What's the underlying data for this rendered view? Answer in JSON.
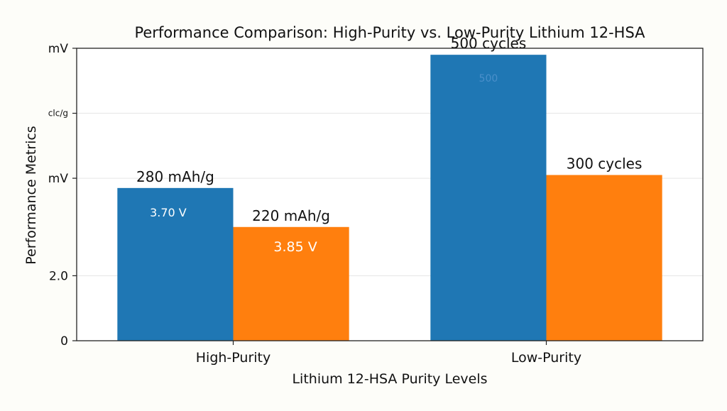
{
  "chart_data": {
    "type": "bar",
    "title": "Performance Comparison: High-Purity vs. Low-Purity Lithium 12-HSA",
    "xlabel": "Lithium 12-HSA Purity Levels",
    "ylabel": "Performance Metrics",
    "categories": [
      "High-Purity",
      "Low-Purity"
    ],
    "ylim": [
      0,
      9
    ],
    "y_ticks": [
      {
        "value": 0,
        "label": "0"
      },
      {
        "value": 2,
        "label": "2.0"
      },
      {
        "value": 5,
        "label": "mV"
      },
      {
        "value": 7,
        "label": "clc/g"
      },
      {
        "value": 9,
        "label": "mV"
      }
    ],
    "grid": true,
    "series": [
      {
        "color": "#1f77b4",
        "values": [
          4.7,
          8.8
        ],
        "top_labels": [
          "280 mAh/g",
          "500 cycles"
        ],
        "inner_labels": [
          "3.70 V",
          "500"
        ]
      },
      {
        "color": "#ff7f0e",
        "values": [
          3.5,
          5.1
        ],
        "top_labels": [
          "220 mAh/g",
          "300 cycles"
        ],
        "inner_labels": [
          "3.85 V",
          ""
        ]
      }
    ]
  }
}
